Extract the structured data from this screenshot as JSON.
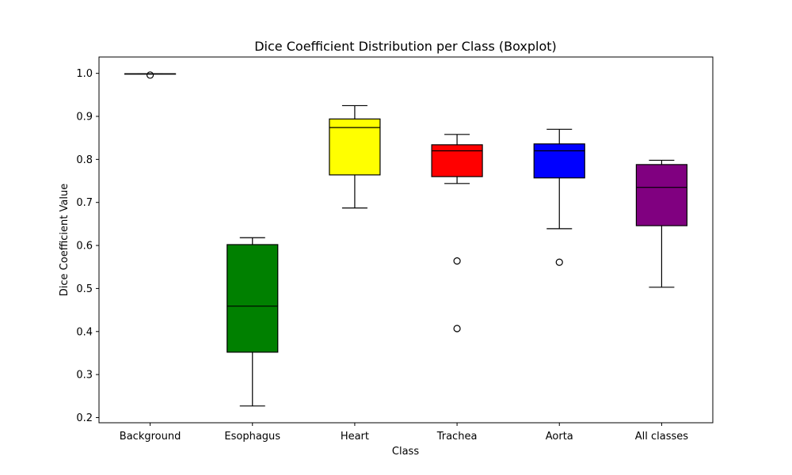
{
  "chart_data": {
    "type": "boxplot",
    "title": "Dice Coefficient Distribution per Class (Boxplot)",
    "xlabel": "Class",
    "ylabel": "Dice Coefficient Value",
    "ylim": [
      0.188,
      1.038
    ],
    "yticks": [
      0.2,
      0.3,
      0.4,
      0.5,
      0.6,
      0.7,
      0.8,
      0.9,
      1.0
    ],
    "ytick_labels": [
      "0.2",
      "0.3",
      "0.4",
      "0.5",
      "0.6",
      "0.7",
      "0.8",
      "0.9",
      "1.0"
    ],
    "grid": false,
    "categories": [
      "Background",
      "Esophagus",
      "Heart",
      "Trachea",
      "Aorta",
      "All classes"
    ],
    "boxes": [
      {
        "category": "Background",
        "color": "#ffffff",
        "whisker_low": 0.999,
        "q1": 0.999,
        "median": 0.999,
        "q3": 0.999,
        "whisker_high": 0.999,
        "outliers": [
          0.996
        ]
      },
      {
        "category": "Esophagus",
        "color": "#008000",
        "whisker_low": 0.227,
        "q1": 0.352,
        "median": 0.459,
        "q3": 0.602,
        "whisker_high": 0.618,
        "outliers": []
      },
      {
        "category": "Heart",
        "color": "#ffff00",
        "whisker_low": 0.687,
        "q1": 0.764,
        "median": 0.874,
        "q3": 0.894,
        "whisker_high": 0.925,
        "outliers": []
      },
      {
        "category": "Trachea",
        "color": "#ff0000",
        "whisker_low": 0.744,
        "q1": 0.76,
        "median": 0.82,
        "q3": 0.834,
        "whisker_high": 0.858,
        "outliers": [
          0.564,
          0.407
        ]
      },
      {
        "category": "Aorta",
        "color": "#0000ff",
        "whisker_low": 0.639,
        "q1": 0.757,
        "median": 0.82,
        "q3": 0.836,
        "whisker_high": 0.87,
        "outliers": [
          0.561
        ]
      },
      {
        "category": "All classes",
        "color": "#800080",
        "whisker_low": 0.503,
        "q1": 0.646,
        "median": 0.735,
        "q3": 0.788,
        "whisker_high": 0.798,
        "outliers": []
      }
    ]
  }
}
